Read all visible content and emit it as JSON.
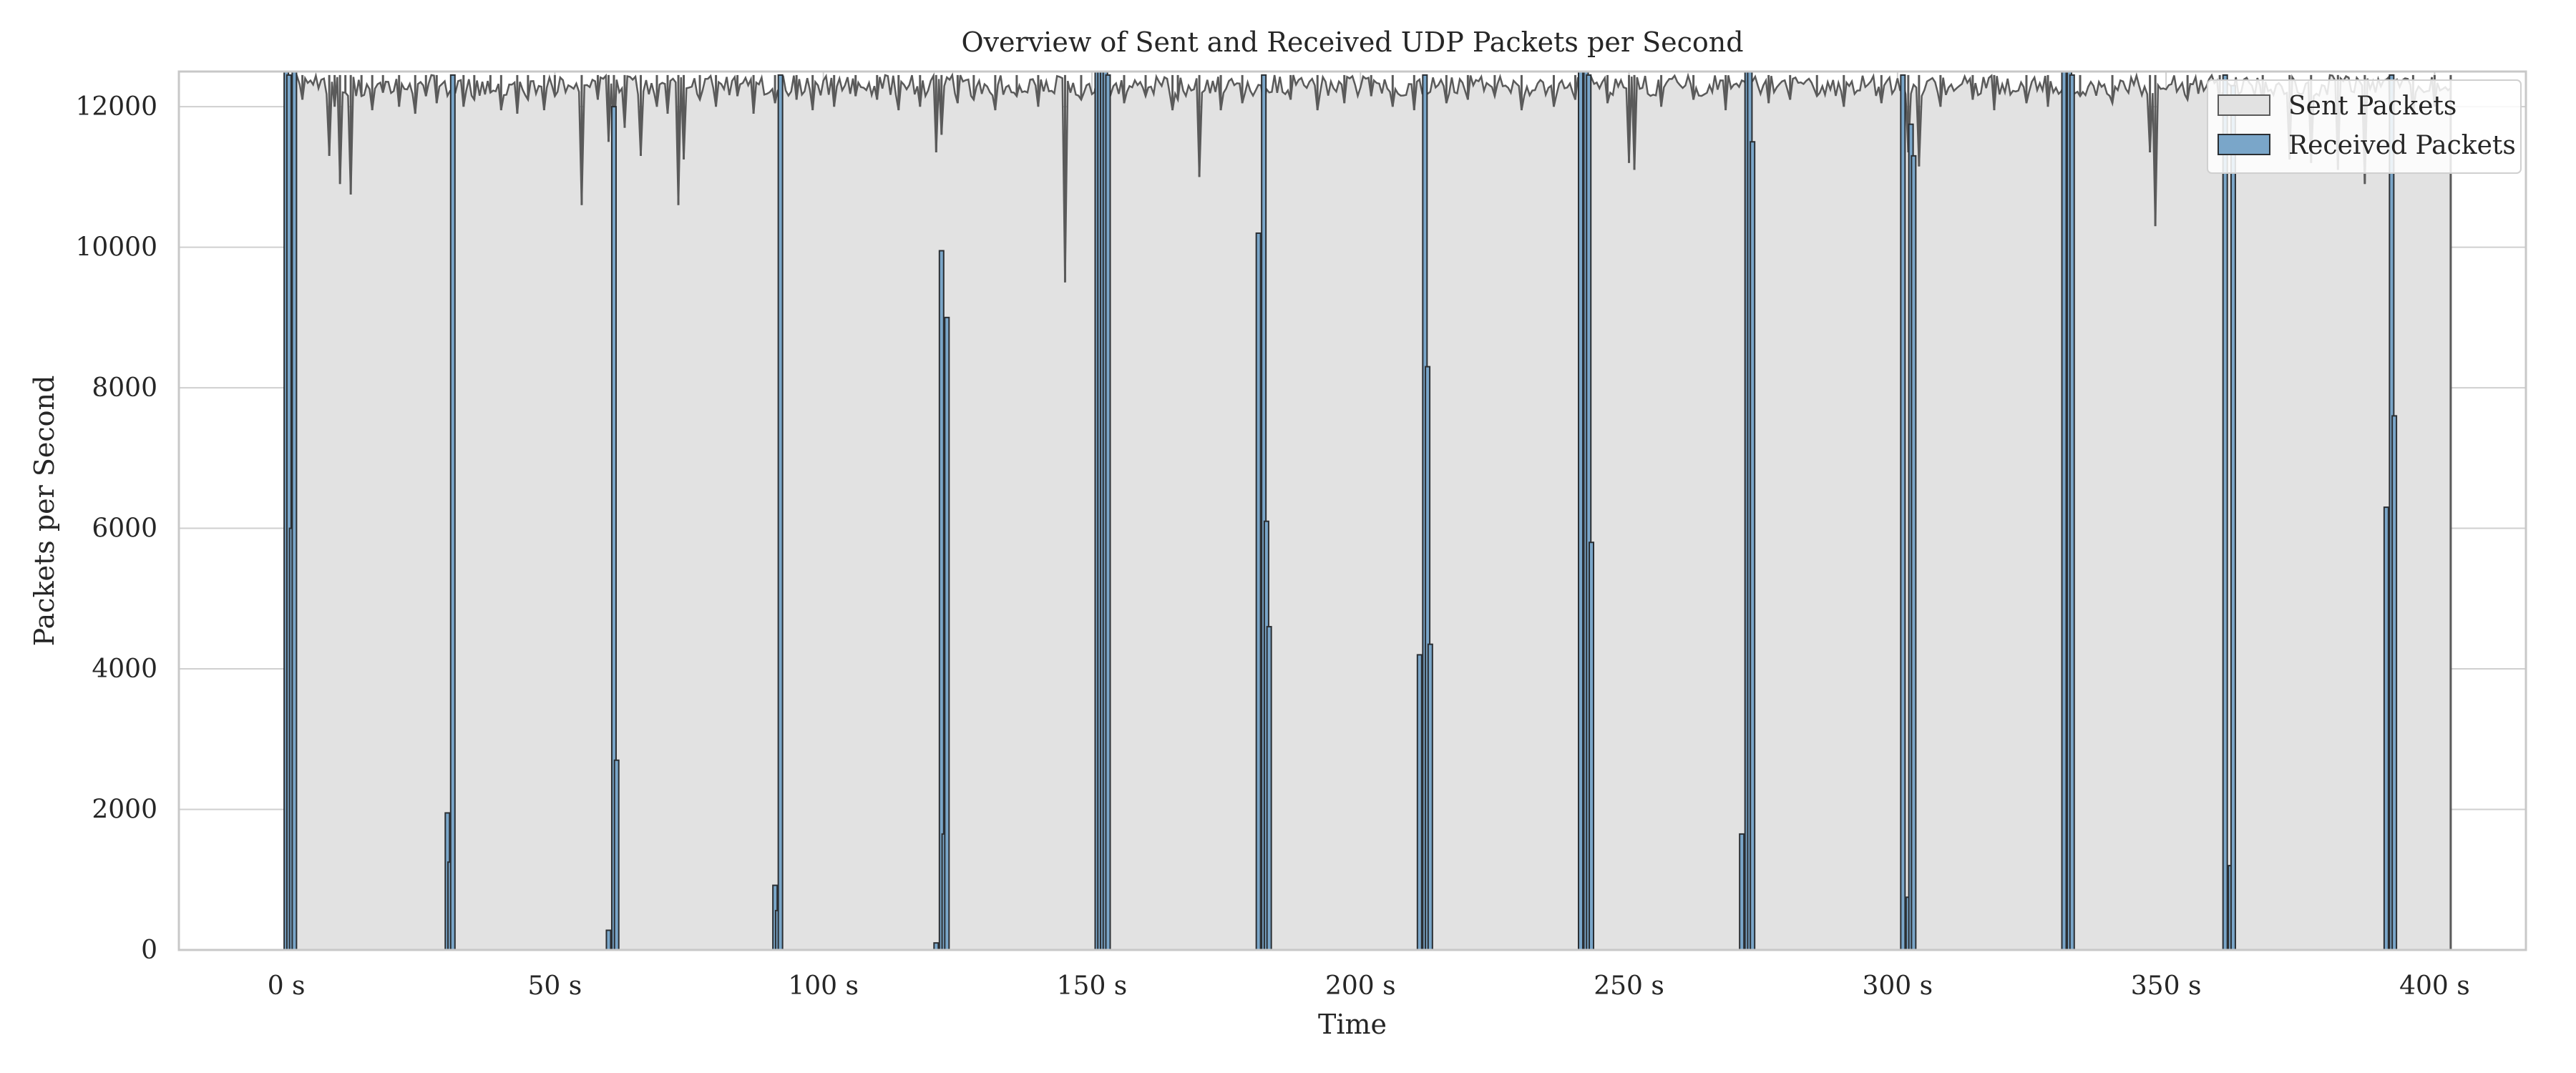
{
  "chart_data": {
    "type": "bar",
    "title": "Overview of Sent and Received UDP Packets per Second",
    "xlabel": "Time",
    "ylabel": "Packets per Second",
    "xlim": [
      -20,
      417
    ],
    "ylim": [
      0,
      12500
    ],
    "x_ticks": [
      0,
      50,
      100,
      150,
      200,
      250,
      300,
      350,
      400
    ],
    "x_tick_labels": [
      "0 s",
      "50 s",
      "100 s",
      "150 s",
      "200 s",
      "250 s",
      "300 s",
      "350 s",
      "400 s"
    ],
    "y_ticks": [
      0,
      2000,
      4000,
      6000,
      8000,
      10000,
      12000
    ],
    "y_tick_labels": [
      "0",
      "2000",
      "4000",
      "6000",
      "8000",
      "10000",
      "12000"
    ],
    "grid": true,
    "legend_position": "top-right",
    "colors": {
      "sent_fill": "#e2e2e2",
      "sent_edge": "#5a5a5a",
      "received_fill": "#7aa6c9",
      "received_edge": "#2b2f33",
      "grid": "#cfcfcf",
      "frame": "#c8c8c8"
    },
    "series": [
      {
        "name": "Sent Packets",
        "description_kind": "near-constant high rate with dips",
        "baseline": 12450,
        "x_range": [
          0,
          403
        ],
        "dips": [
          [
            1,
            11750
          ],
          [
            3,
            12100
          ],
          [
            8,
            11300
          ],
          [
            9,
            12000
          ],
          [
            10,
            10900
          ],
          [
            11,
            12200
          ],
          [
            12,
            10750
          ],
          [
            14,
            12150
          ],
          [
            16,
            11950
          ],
          [
            18,
            12200
          ],
          [
            21,
            12000
          ],
          [
            24,
            11900
          ],
          [
            26,
            12150
          ],
          [
            28,
            12050
          ],
          [
            33,
            12000
          ],
          [
            35,
            12100
          ],
          [
            38,
            12200
          ],
          [
            40,
            11950
          ],
          [
            43,
            11900
          ],
          [
            45,
            12100
          ],
          [
            48,
            11950
          ],
          [
            50,
            12150
          ],
          [
            55,
            10600
          ],
          [
            58,
            12100
          ],
          [
            60,
            11500
          ],
          [
            61,
            11450
          ],
          [
            63,
            11700
          ],
          [
            66,
            11300
          ],
          [
            69,
            12000
          ],
          [
            71,
            11900
          ],
          [
            73,
            10600
          ],
          [
            74,
            11250
          ],
          [
            77,
            12100
          ],
          [
            80,
            12000
          ],
          [
            84,
            12150
          ],
          [
            87,
            11900
          ],
          [
            91,
            12050
          ],
          [
            95,
            12100
          ],
          [
            98,
            11950
          ],
          [
            102,
            12000
          ],
          [
            106,
            12150
          ],
          [
            110,
            12100
          ],
          [
            114,
            11950
          ],
          [
            118,
            12000
          ],
          [
            121,
            11350
          ],
          [
            122,
            11600
          ],
          [
            125,
            12050
          ],
          [
            128,
            12100
          ],
          [
            132,
            11950
          ],
          [
            136,
            12150
          ],
          [
            140,
            12000
          ],
          [
            145,
            9500
          ],
          [
            148,
            12100
          ],
          [
            156,
            12050
          ],
          [
            160,
            12150
          ],
          [
            165,
            11950
          ],
          [
            166,
            12100
          ],
          [
            170,
            11000
          ],
          [
            174,
            11950
          ],
          [
            178,
            12050
          ],
          [
            182,
            12000
          ],
          [
            187,
            12100
          ],
          [
            192,
            11950
          ],
          [
            197,
            12050
          ],
          [
            202,
            12150
          ],
          [
            206,
            12000
          ],
          [
            210,
            11950
          ],
          [
            216,
            12050
          ],
          [
            220,
            12100
          ],
          [
            225,
            12150
          ],
          [
            230,
            11950
          ],
          [
            236,
            12000
          ],
          [
            240,
            12100
          ],
          [
            246,
            12050
          ],
          [
            250,
            11200
          ],
          [
            251,
            11100
          ],
          [
            256,
            12000
          ],
          [
            262,
            12100
          ],
          [
            268,
            11950
          ],
          [
            276,
            12050
          ],
          [
            280,
            12100
          ],
          [
            285,
            12150
          ],
          [
            290,
            12000
          ],
          [
            297,
            12050
          ],
          [
            302,
            11350
          ],
          [
            304,
            11150
          ],
          [
            308,
            12000
          ],
          [
            314,
            12100
          ],
          [
            318,
            11950
          ],
          [
            324,
            12050
          ],
          [
            328,
            12000
          ],
          [
            334,
            12150
          ],
          [
            340,
            12050
          ],
          [
            347,
            11350
          ],
          [
            348,
            10300
          ],
          [
            354,
            12100
          ],
          [
            360,
            11950
          ],
          [
            368,
            12000
          ],
          [
            373,
            11250
          ],
          [
            377,
            11200
          ],
          [
            382,
            11100
          ],
          [
            387,
            10900
          ],
          [
            392,
            10950
          ],
          [
            396,
            11900
          ],
          [
            400,
            12000
          ]
        ]
      },
      {
        "name": "Received Packets",
        "description_kind": "periodic bursts",
        "points": [
          [
            0,
            12500
          ],
          [
            0.5,
            12450
          ],
          [
            1,
            6000
          ],
          [
            1.5,
            12500
          ],
          [
            30,
            1950
          ],
          [
            30.5,
            1250
          ],
          [
            31,
            12450
          ],
          [
            60,
            280
          ],
          [
            61,
            12000
          ],
          [
            61.5,
            2700
          ],
          [
            91,
            920
          ],
          [
            91.5,
            560
          ],
          [
            92,
            12450
          ],
          [
            121,
            100
          ],
          [
            122,
            9950
          ],
          [
            122.5,
            1650
          ],
          [
            123,
            9000
          ],
          [
            151,
            12500
          ],
          [
            151.5,
            12500
          ],
          [
            152,
            12500
          ],
          [
            152.5,
            12500
          ],
          [
            153,
            12450
          ],
          [
            181,
            10200
          ],
          [
            182,
            12450
          ],
          [
            182.5,
            6100
          ],
          [
            183,
            4600
          ],
          [
            211,
            4200
          ],
          [
            212,
            12450
          ],
          [
            212.5,
            8300
          ],
          [
            213,
            4350
          ],
          [
            241,
            12500
          ],
          [
            242,
            12500
          ],
          [
            242.5,
            12450
          ],
          [
            243,
            5800
          ],
          [
            271,
            1650
          ],
          [
            272,
            12500
          ],
          [
            272.5,
            12500
          ],
          [
            273,
            11500
          ],
          [
            301,
            12450
          ],
          [
            302,
            750
          ],
          [
            302.5,
            11750
          ],
          [
            303,
            11300
          ],
          [
            331,
            12500
          ],
          [
            332,
            12500
          ],
          [
            332.5,
            12450
          ],
          [
            361,
            12450
          ],
          [
            362,
            1200
          ],
          [
            362.5,
            12300
          ],
          [
            391,
            6300
          ],
          [
            392,
            12450
          ],
          [
            392.5,
            7600
          ]
        ]
      }
    ]
  }
}
